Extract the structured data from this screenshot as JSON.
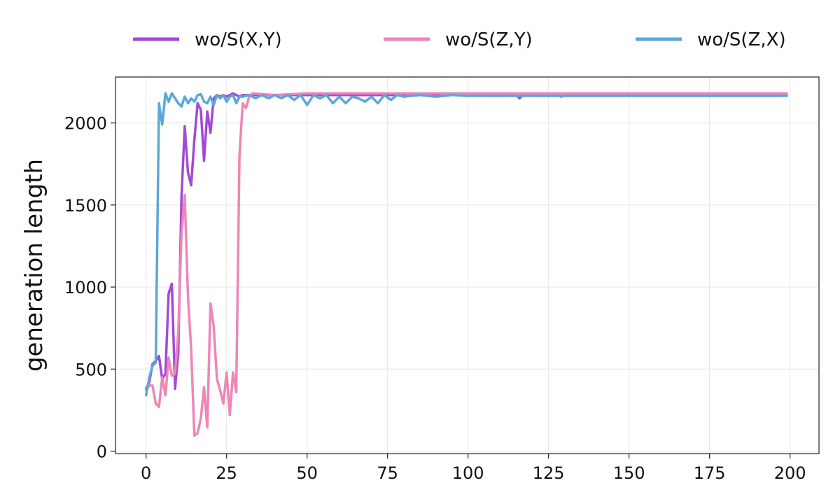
{
  "chart_data": {
    "type": "line",
    "xlabel": "",
    "ylabel": "generation length",
    "xlim": [
      -9.5,
      209
    ],
    "ylim": [
      -15,
      2280
    ],
    "xticks": [
      0,
      25,
      50,
      75,
      100,
      125,
      150,
      175,
      200
    ],
    "yticks": [
      0,
      500,
      1000,
      1500,
      2000
    ],
    "grid": true,
    "legend_position": "top-center, outside plot area",
    "series": [
      {
        "name": "wo/S(X,Y)",
        "color": "#a24ad6",
        "x": [
          0,
          1,
          2,
          3,
          4,
          5,
          6,
          7,
          8,
          9,
          10,
          11,
          12,
          13,
          14,
          15,
          16,
          17,
          18,
          19,
          20,
          21,
          22,
          23,
          24,
          25,
          26,
          27,
          28,
          29,
          30,
          35,
          40,
          45,
          50,
          60,
          70,
          80,
          90,
          100,
          110,
          115,
          116,
          117,
          120,
          128,
          129,
          130,
          140,
          150,
          175,
          199
        ],
        "y": [
          380,
          420,
          530,
          550,
          580,
          440,
          470,
          960,
          1020,
          380,
          600,
          1550,
          1980,
          1700,
          1620,
          1900,
          2120,
          2080,
          1770,
          2070,
          1940,
          2150,
          2170,
          2160,
          2170,
          2160,
          2170,
          2180,
          2170,
          2160,
          2170,
          2170,
          2170,
          2170,
          2170,
          2170,
          2170,
          2170,
          2170,
          2170,
          2170,
          2170,
          2150,
          2170,
          2170,
          2170,
          2160,
          2170,
          2170,
          2170,
          2170,
          2170
        ]
      },
      {
        "name": "wo/S(Z,Y)",
        "color": "#ee86b7",
        "x": [
          0,
          1,
          2,
          3,
          4,
          5,
          6,
          7,
          8,
          9,
          10,
          11,
          12,
          13,
          14,
          15,
          16,
          17,
          18,
          19,
          20,
          21,
          22,
          23,
          24,
          25,
          26,
          27,
          28,
          29,
          30,
          31,
          32,
          33,
          40,
          50,
          60,
          70,
          80,
          90,
          100,
          110,
          125,
          150,
          175,
          199
        ],
        "y": [
          370,
          400,
          400,
          290,
          270,
          450,
          340,
          570,
          460,
          470,
          730,
          1320,
          1560,
          950,
          620,
          95,
          110,
          200,
          390,
          145,
          900,
          760,
          440,
          370,
          290,
          480,
          220,
          480,
          360,
          1800,
          2120,
          2090,
          2160,
          2180,
          2170,
          2180,
          2180,
          2180,
          2180,
          2180,
          2180,
          2180,
          2180,
          2180,
          2180,
          2180
        ]
      },
      {
        "name": "wo/S(Z,X)",
        "color": "#5ba8d8",
        "x": [
          0,
          1,
          2,
          3,
          4,
          5,
          6,
          7,
          8,
          9,
          10,
          11,
          12,
          13,
          14,
          15,
          16,
          17,
          18,
          19,
          20,
          21,
          22,
          23,
          24,
          25,
          26,
          27,
          28,
          29,
          30,
          32,
          34,
          36,
          38,
          40,
          42,
          44,
          46,
          48,
          50,
          52,
          54,
          56,
          58,
          60,
          62,
          64,
          66,
          68,
          70,
          72,
          74,
          76,
          78,
          80,
          85,
          90,
          95,
          100,
          125,
          150,
          175,
          199
        ],
        "y": [
          340,
          450,
          520,
          540,
          2120,
          1990,
          2180,
          2130,
          2180,
          2150,
          2120,
          2100,
          2160,
          2120,
          2150,
          2130,
          2170,
          2175,
          2130,
          2120,
          2160,
          2110,
          2170,
          2150,
          2170,
          2130,
          2160,
          2170,
          2120,
          2160,
          2160,
          2170,
          2150,
          2170,
          2150,
          2170,
          2150,
          2170,
          2140,
          2170,
          2110,
          2170,
          2150,
          2170,
          2120,
          2160,
          2120,
          2160,
          2150,
          2130,
          2160,
          2120,
          2170,
          2140,
          2170,
          2160,
          2170,
          2160,
          2170,
          2165,
          2165,
          2165,
          2165,
          2165
        ]
      }
    ]
  }
}
